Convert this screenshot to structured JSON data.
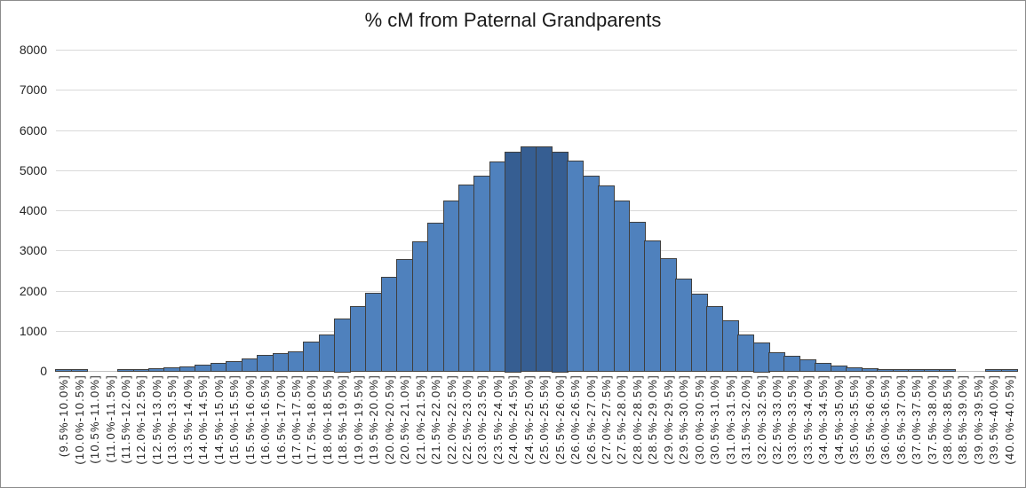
{
  "chart_data": {
    "type": "bar",
    "title": "% cM from Paternal Grandparents",
    "xlabel": "",
    "ylabel": "",
    "ylim": [
      0,
      8000
    ],
    "yticks": [
      0,
      1000,
      2000,
      3000,
      4000,
      5000,
      6000,
      7000,
      8000
    ],
    "grid": true,
    "legend": "none",
    "bar_fill": "#4F81BD",
    "bar_border": "#3F3F3F",
    "gridline_color": "#D9D9D9",
    "axis_line_color": "#BFBFBF",
    "highlight": {
      "indices": [
        29,
        30,
        31,
        32
      ],
      "fill": "#365E92"
    },
    "categories": [
      "(9.5%-10.0%]",
      "(10.0%-10.5%]",
      "(10.5%-11.0%]",
      "(11.0%-11.5%]",
      "(11.5%-12.0%]",
      "(12.0%-12.5%]",
      "(12.5%-13.0%]",
      "(13.0%-13.5%]",
      "(13.5%-14.0%]",
      "(14.0%-14.5%]",
      "(14.5%-15.0%]",
      "(15.0%-15.5%]",
      "(15.5%-16.0%]",
      "(16.0%-16.5%]",
      "(16.5%-17.0%]",
      "(17.0%-17.5%]",
      "(17.5%-18.0%]",
      "(18.0%-18.5%]",
      "(18.5%-19.0%]",
      "(19.0%-19.5%]",
      "(19.5%-20.0%]",
      "(20.0%-20.5%]",
      "(20.5%-21.0%]",
      "(21.0%-21.5%]",
      "(21.5%-22.0%]",
      "(22.0%-22.5%]",
      "(22.5%-23.0%]",
      "(23.0%-23.5%]",
      "(23.5%-24.0%]",
      "(24.0%-24.5%]",
      "(24.5%-25.0%]",
      "(25.0%-25.5%]",
      "(25.5%-26.0%]",
      "(26.0%-26.5%]",
      "(26.5%-27.0%]",
      "(27.0%-27.5%]",
      "(27.5%-28.0%]",
      "(28.0%-28.5%]",
      "(28.5%-29.0%]",
      "(29.0%-29.5%]",
      "(29.5%-30.0%]",
      "(30.0%-30.5%]",
      "(30.5%-31.0%]",
      "(31.0%-31.5%]",
      "(31.5%-32.0%]",
      "(32.0%-32.5%]",
      "(32.5%-33.0%]",
      "(33.0%-33.5%]",
      "(33.5%-34.0%]",
      "(34.0%-34.5%]",
      "(34.5%-35.0%]",
      "(35.0%-35.5%]",
      "(35.5%-36.0%]",
      "(36.0%-36.5%]",
      "(36.5%-37.0%]",
      "(37.0%-37.5%]",
      "(37.5%-38.0%]",
      "(38.0%-38.5%]",
      "(38.5%-39.0%]",
      "(39.0%-39.5%]",
      "(39.5%-40.0%]",
      "(40.0%-40.5%]"
    ],
    "values": [
      15,
      15,
      0,
      0,
      10,
      15,
      25,
      50,
      85,
      115,
      160,
      215,
      270,
      355,
      405,
      460,
      700,
      870,
      1260,
      1575,
      1920,
      2320,
      2750,
      3200,
      3650,
      4220,
      4600,
      4830,
      5180,
      5420,
      5550,
      5550,
      5420,
      5200,
      4820,
      4590,
      4220,
      3670,
      3225,
      2770,
      2270,
      1880,
      1585,
      1230,
      870,
      685,
      440,
      350,
      255,
      170,
      90,
      50,
      35,
      15,
      15,
      15,
      12,
      10,
      0,
      0,
      10,
      10
    ]
  }
}
